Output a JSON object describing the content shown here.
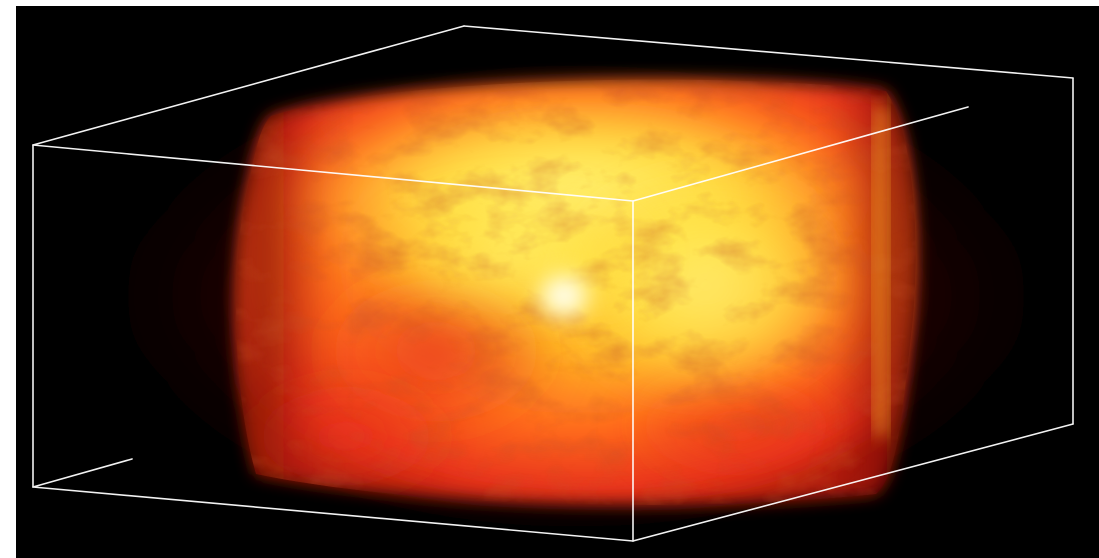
{
  "render": {
    "background_color": "#000000",
    "bounding_box_color": "#ffffff",
    "colormap": [
      "#2a0500",
      "#8a1406",
      "#e8321a",
      "#ff6a1e",
      "#ffae22",
      "#ffe83a",
      "#fffbd0"
    ]
  }
}
